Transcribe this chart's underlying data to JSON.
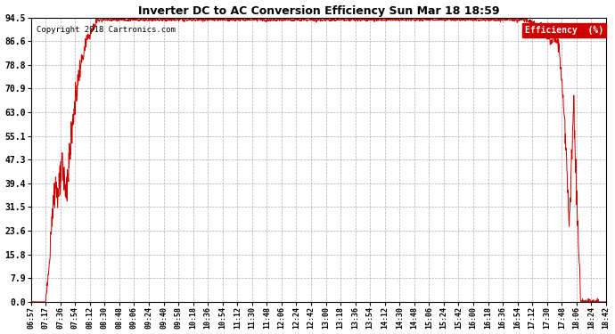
{
  "title": "Inverter DC to AC Conversion Efficiency Sun Mar 18 18:59",
  "copyright": "Copyright 2018 Cartronics.com",
  "legend_label": "Efficiency  (%)",
  "legend_bg": "#cc0000",
  "legend_fg": "#ffffff",
  "line_color": "#cc0000",
  "bg_color": "#ffffff",
  "grid_color": "#999999",
  "yticks": [
    0.0,
    7.9,
    15.8,
    23.6,
    31.5,
    39.4,
    47.3,
    55.1,
    63.0,
    70.9,
    78.8,
    86.6,
    94.5
  ],
  "xtick_labels": [
    "06:57",
    "07:17",
    "07:36",
    "07:54",
    "08:12",
    "08:30",
    "08:48",
    "09:06",
    "09:24",
    "09:40",
    "09:58",
    "10:18",
    "10:36",
    "10:54",
    "11:12",
    "11:30",
    "11:48",
    "12:06",
    "12:24",
    "12:42",
    "13:00",
    "13:18",
    "13:36",
    "13:54",
    "14:12",
    "14:30",
    "14:48",
    "15:06",
    "15:24",
    "15:42",
    "16:00",
    "16:18",
    "16:36",
    "16:54",
    "17:12",
    "17:30",
    "17:48",
    "18:06",
    "18:24",
    "18:42"
  ],
  "ymin": 0.0,
  "ymax": 94.5
}
